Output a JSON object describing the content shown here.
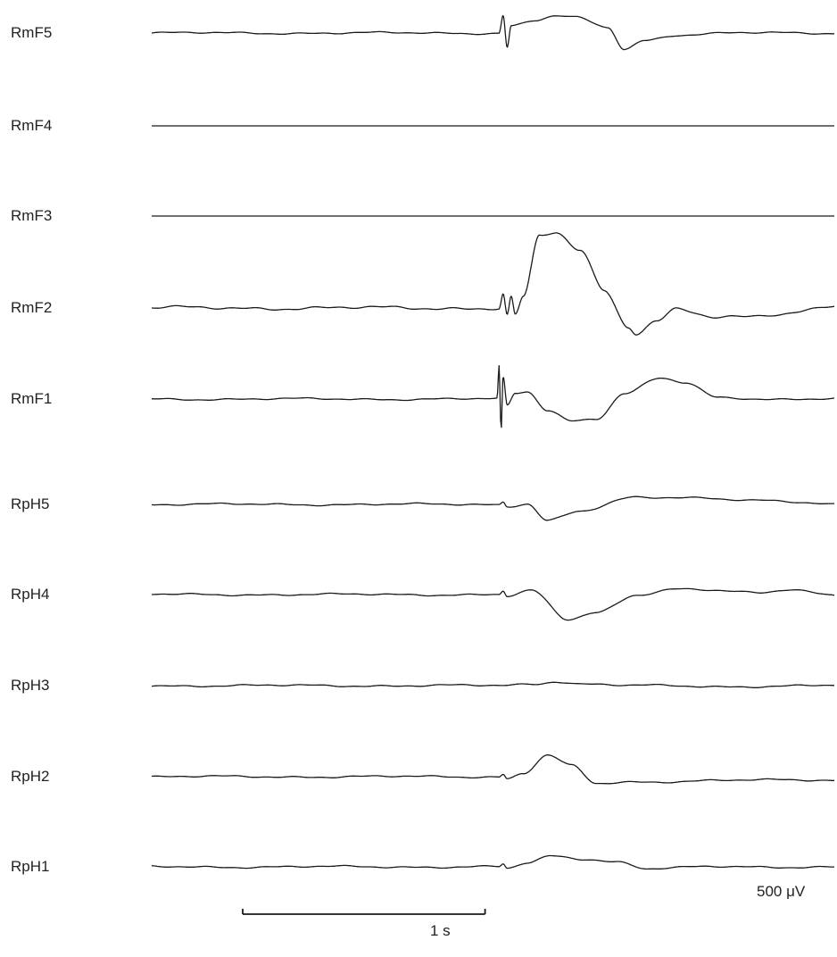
{
  "chart_data": {
    "type": "line",
    "title": "",
    "xlabel": "",
    "ylabel": "",
    "x_unit": "s",
    "y_unit": "μV",
    "time_range_s": [
      0,
      1.69
    ],
    "stimulus_time_s": 0.86,
    "scale_bars": {
      "time_label": "1 s",
      "time_value_s": 1,
      "amplitude_label": "500 μV",
      "amplitude_value_uV": 500
    },
    "series": [
      {
        "name": "RmF5",
        "x": [
          0,
          0.86,
          0.87,
          0.88,
          0.89,
          0.95,
          1.0,
          1.05,
          1.13,
          1.17,
          1.22,
          1.3,
          1.45,
          1.6,
          1.69
        ],
        "values": [
          0,
          0,
          100,
          -80,
          40,
          70,
          95,
          85,
          30,
          -90,
          -40,
          -10,
          0,
          0,
          0
        ]
      },
      {
        "name": "RmF4",
        "x": [
          0,
          1.69
        ],
        "values": [
          0,
          0
        ]
      },
      {
        "name": "RmF3",
        "x": [
          0,
          1.69
        ],
        "values": [
          0,
          0
        ]
      },
      {
        "name": "RmF2",
        "x": [
          0,
          0.86,
          0.87,
          0.88,
          0.89,
          0.9,
          0.92,
          0.96,
          1.0,
          1.06,
          1.12,
          1.18,
          1.2,
          1.25,
          1.3,
          1.4,
          1.55,
          1.69
        ],
        "values": [
          0,
          0,
          80,
          -40,
          60,
          -40,
          60,
          400,
          420,
          320,
          100,
          -100,
          -140,
          -70,
          0,
          -60,
          -40,
          20
        ]
      },
      {
        "name": "RmF1",
        "x": [
          0,
          0.855,
          0.86,
          0.865,
          0.87,
          0.88,
          0.9,
          0.93,
          0.98,
          1.04,
          1.1,
          1.17,
          1.26,
          1.32,
          1.4,
          1.55,
          1.69
        ],
        "values": [
          0,
          0,
          180,
          -180,
          120,
          -40,
          30,
          40,
          -60,
          -120,
          -110,
          30,
          115,
          90,
          10,
          0,
          0
        ]
      },
      {
        "name": "RpH5",
        "x": [
          0,
          0.86,
          0.87,
          0.88,
          0.93,
          0.98,
          1.06,
          1.2,
          1.35,
          1.5,
          1.69
        ],
        "values": [
          0,
          0,
          15,
          -10,
          5,
          -90,
          -40,
          40,
          40,
          20,
          0
        ]
      },
      {
        "name": "RpH4",
        "x": [
          0,
          0.86,
          0.87,
          0.88,
          0.94,
          1.03,
          1.1,
          1.2,
          1.3,
          1.5,
          1.58,
          1.69
        ],
        "values": [
          0,
          0,
          20,
          -10,
          20,
          -140,
          -100,
          0,
          30,
          10,
          30,
          0
        ]
      },
      {
        "name": "RpH3",
        "x": [
          0,
          0.86,
          0.95,
          1.0,
          1.06,
          1.2,
          1.4,
          1.69
        ],
        "values": [
          0,
          0,
          10,
          25,
          10,
          0,
          -5,
          0
        ]
      },
      {
        "name": "RpH2",
        "x": [
          0,
          0.86,
          0.87,
          0.88,
          0.92,
          0.98,
          1.04,
          1.1,
          1.2,
          1.4,
          1.69
        ],
        "values": [
          0,
          0,
          15,
          -10,
          20,
          120,
          60,
          -40,
          -30,
          -20,
          -20
        ]
      },
      {
        "name": "RpH1",
        "x": [
          0,
          0.86,
          0.87,
          0.88,
          0.93,
          0.99,
          1.07,
          1.15,
          1.23,
          1.4,
          1.69
        ],
        "values": [
          0,
          0,
          15,
          -10,
          20,
          60,
          45,
          30,
          -10,
          0,
          0
        ]
      }
    ]
  }
}
